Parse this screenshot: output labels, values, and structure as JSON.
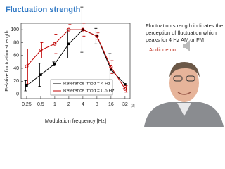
{
  "slide": {
    "title": "Fluctuation strength",
    "side_text": [
      "Fluctuation strength indicates the",
      "perception of fluctuation  which",
      "peaks for 4 Hz AM or FM"
    ],
    "audio_link": "Audiodemo",
    "reference": "[2]"
  },
  "chart_data": {
    "type": "line",
    "xlabel": "Modulation frequency [Hz]",
    "ylabel": "Relative fluctuation strength",
    "x": [
      0.25,
      0.5,
      1,
      2,
      4,
      8,
      16,
      32
    ],
    "xscale": "log",
    "xlim": [
      0.19,
      41
    ],
    "xticks": [
      0.25,
      0.5,
      1,
      2,
      4,
      8,
      16,
      32
    ],
    "ylim": [
      -7,
      110
    ],
    "yticks": [
      0,
      20,
      40,
      60,
      80,
      100
    ],
    "legend": "lower center",
    "series": [
      {
        "name": "Reference fmod = 4 Hz",
        "color": "#000000",
        "marker": "square",
        "values": [
          13,
          30,
          47,
          78,
          100,
          90,
          38,
          15
        ],
        "errors": [
          8,
          18,
          3,
          22,
          35,
          12,
          25,
          7
        ]
      },
      {
        "name": "Reference fmod = 0.5 Hz",
        "color": "#c00000",
        "marker": "circle",
        "values": [
          43,
          68,
          78,
          100,
          100,
          90,
          42,
          8
        ],
        "errors": [
          27,
          12,
          15,
          8,
          10,
          5,
          10,
          5
        ]
      }
    ]
  }
}
